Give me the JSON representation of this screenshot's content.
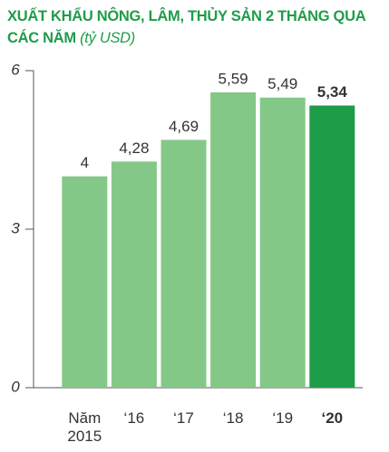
{
  "chart_data": {
    "type": "bar",
    "title": "XUẤT KHẨU NÔNG, LÂM, THỦY SẢN 2 THÁNG QUA CÁC NĂM",
    "subtitle": "(tỷ USD)",
    "categories": [
      "Năm 2015",
      "‘16",
      "‘17",
      "‘18",
      "‘19",
      "‘20"
    ],
    "values": [
      4,
      4.28,
      4.69,
      5.59,
      5.49,
      5.34
    ],
    "value_labels": [
      "4",
      "4,28",
      "4,69",
      "5,59",
      "5,49",
      "5,34"
    ],
    "color": "#84c887",
    "highlight_color": "#1f9c4a",
    "highlight_index": 5,
    "ylim": [
      0,
      6
    ],
    "yticks": [
      0,
      3,
      6
    ]
  }
}
